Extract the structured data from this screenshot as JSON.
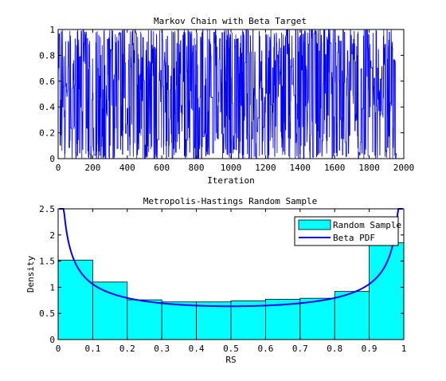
{
  "chart_data": [
    {
      "type": "line",
      "title": "Markov Chain with Beta Target",
      "xlabel": "Iteration",
      "ylabel": "",
      "xlim": [
        0,
        2000
      ],
      "ylim": [
        0,
        1
      ],
      "xticks": [
        "0",
        "200",
        "400",
        "600",
        "800",
        "1000",
        "1200",
        "1400",
        "1600",
        "1800",
        "2000"
      ],
      "yticks": [
        "0",
        "0.2",
        "0.4",
        "0.6",
        "0.8",
        "1"
      ],
      "series": [
        {
          "name": "Markov chain",
          "color": "#0000ff",
          "n_iterations": 1960,
          "description_values": "Samples from a Beta(0.5,0.5)-like target, values spanning 0 to 1, densest near 0 and 1"
        }
      ]
    },
    {
      "type": "bar",
      "title": "Metropolis-Hastings Random Sample",
      "xlabel": "RS",
      "ylabel": "Density",
      "xlim": [
        0,
        1
      ],
      "ylim": [
        0,
        2.5
      ],
      "xticks": [
        "0",
        "0.1",
        "0.2",
        "0.3",
        "0.4",
        "0.5",
        "0.6",
        "0.7",
        "0.8",
        "0.9",
        "1"
      ],
      "yticks": [
        "0",
        "0.5",
        "1",
        "1.5",
        "2",
        "2.5"
      ],
      "bin_edges": [
        0,
        0.1,
        0.2,
        0.3,
        0.4,
        0.5,
        0.6,
        0.7,
        0.8,
        0.9,
        1.0
      ],
      "series": [
        {
          "name": "Random Sample",
          "color": "#00ffff",
          "values": [
            1.52,
            1.1,
            0.76,
            0.72,
            0.72,
            0.74,
            0.77,
            0.79,
            0.92,
            1.85
          ]
        },
        {
          "name": "Beta PDF",
          "color": "#0000ff",
          "function": "beta",
          "alpha": 0.5,
          "beta": 0.5
        }
      ],
      "legend": {
        "position": "top-right",
        "entries": [
          "Random Sample",
          "Beta PDF"
        ]
      }
    }
  ]
}
